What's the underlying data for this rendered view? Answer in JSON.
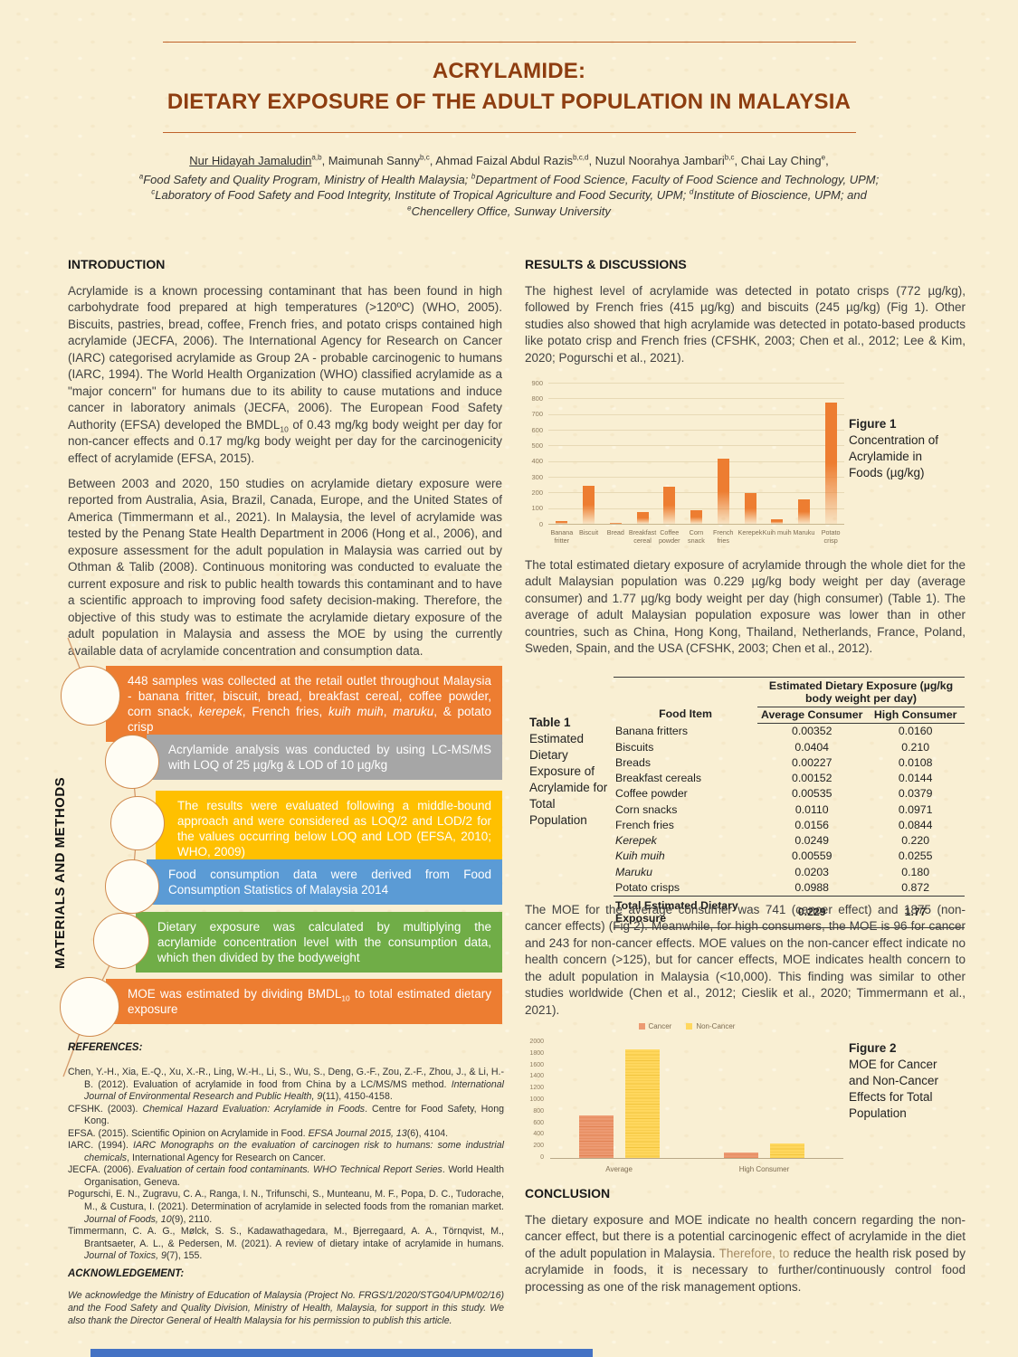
{
  "page": {
    "title_line1": "ACRYLAMIDE:",
    "title_line2": "DIETARY EXPOSURE OF THE ADULT POPULATION IN MALAYSIA"
  },
  "authors": {
    "segments": [
      {
        "t": "Nur Hidayah Jamaludin",
        "u": true
      },
      {
        "t": "a,b",
        "sup": true
      },
      {
        "t": ", Maimunah Sanny"
      },
      {
        "t": "b,c",
        "sup": true
      },
      {
        "t": ", Ahmad Faizal Abdul Razis"
      },
      {
        "t": "b,c,d",
        "sup": true
      },
      {
        "t": ", Nuzul Noorahya Jambari"
      },
      {
        "t": "b,c",
        "sup": true
      },
      {
        "t": ", Chai Lay Ching"
      },
      {
        "t": "e",
        "sup": true
      },
      {
        "t": ","
      }
    ]
  },
  "affiliations": {
    "segments": [
      {
        "t": "a",
        "sup": true
      },
      {
        "t": "Food Safety and Quality Program, Ministry of Health Malaysia; "
      },
      {
        "t": "b",
        "sup": true
      },
      {
        "t": "Department of Food Science, Faculty of Food Science and Technology, UPM; "
      },
      {
        "t": "c",
        "sup": true
      },
      {
        "t": "Laboratory of Food Safety and Food Integrity, Institute of Tropical Agriculture and Food Security, UPM; "
      },
      {
        "t": "d",
        "sup": true
      },
      {
        "t": "Institute of Bioscience, UPM; and "
      },
      {
        "t": "e",
        "sup": true
      },
      {
        "t": "Chencellery Office, Sunway University"
      }
    ]
  },
  "intro": {
    "heading": "INTRODUCTION",
    "p1_segments": [
      {
        "t": "Acrylamide is a known processing contaminant that has been found in high carbohydrate food prepared at high temperatures (>120ºC) (WHO, 2005). Biscuits, pastries, bread, coffee, French fries, and potato crisps contained high acrylamide (JECFA, 2006). The International Agency for Research on Cancer (IARC) categorised acrylamide as Group 2A - probable carcinogenic to humans (IARC, 1994). The World Health Organization (WHO) classified acrylamide as a \"major concern\" for humans due to its ability to cause mutations and induce cancer in laboratory animals (JECFA, 2006). The European Food Safety Authority (EFSA) developed the BMDL"
      },
      {
        "t": "10",
        "sub": true
      },
      {
        "t": " of 0.43 mg/kg body weight per day for non-cancer effects and 0.17 mg/kg body weight per day for the carcinogenicity effect of acrylamide (EFSA, 2015)."
      }
    ],
    "p2": "Between 2003 and 2020, 150 studies on acrylamide dietary exposure were reported from Australia, Asia, Brazil, Canada, Europe, and the United States of America (Timmermann et al., 2021). In Malaysia, the level of acrylamide was tested by the Penang State Health Department in 2006 (Hong et al., 2006), and exposure assessment for the adult population in Malaysia was carried out by Othman & Talib (2008). Continuous monitoring was conducted to evaluate the current exposure and risk to public health towards this contaminant and to have a scientific approach to improving food safety decision-making. Therefore, the objective of this study was to estimate the acrylamide dietary exposure of the adult population in Malaysia and assess the MOE by using the currently available data of acrylamide concentration and consumption data."
  },
  "methods": {
    "side_label": "MATERIALS AND METHODS",
    "boxes": [
      {
        "color": "#ED7D31",
        "segments": [
          {
            "t": "448 samples was collected at the retail outlet throughout Malaysia - banana fritter, biscuit, bread, breakfast cereal, coffee powder, corn snack, "
          },
          {
            "t": "kerepek",
            "i": true
          },
          {
            "t": ", French fries, "
          },
          {
            "t": "kuih muih",
            "i": true
          },
          {
            "t": ", "
          },
          {
            "t": "maruku",
            "i": true
          },
          {
            "t": ", & potato crisp"
          }
        ]
      },
      {
        "color": "#A6A6A6",
        "segments": [
          {
            "t": "Acrylamide analysis was conducted by using LC-MS/MS with LOQ of 25 µg/kg & LOD of 10 µg/kg"
          }
        ]
      },
      {
        "color": "#FFC000",
        "segments": [
          {
            "t": "The results were evaluated following a middle-bound approach and were considered as LOQ/2 and LOD/2 for the values occurring below LOQ and LOD (EFSA, 2010; WHO, 2009)"
          }
        ]
      },
      {
        "color": "#5B9BD5",
        "segments": [
          {
            "t": "Food consumption data were derived from Food Consumption Statistics of Malaysia 2014"
          }
        ]
      },
      {
        "color": "#70AD47",
        "segments": [
          {
            "t": "Dietary exposure was calculated by multiplying the acrylamide concentration level with the consumption data, which then divided by the bodyweight"
          }
        ]
      },
      {
        "color": "#ED7D31",
        "segments": [
          {
            "t": "MOE was estimated by dividing BMDL"
          },
          {
            "t": "10",
            "sub": true
          },
          {
            "t": " to total estimated dietary exposure"
          }
        ]
      }
    ]
  },
  "references": {
    "heading": "REFERENCES:",
    "items": [
      {
        "segments": [
          {
            "t": "Chen, Y.-H., Xia, E.-Q., Xu, X.-R., Ling, W.-H., Li, S., Wu, S., Deng, G.-F., Zou, Z.-F., Zhou, J., & Li, H.-B. (2012). Evaluation of acrylamide in food from China by a LC/MS/MS method. "
          },
          {
            "t": "International Journal of Environmental Research and Public Health, 9",
            "i": true
          },
          {
            "t": "(11), 4150-4158."
          }
        ]
      },
      {
        "segments": [
          {
            "t": "CFSHK. (2003). "
          },
          {
            "t": "Chemical Hazard Evaluation: Acrylamide in Foods",
            "i": true
          },
          {
            "t": ". Centre for Food Safety, Hong Kong."
          }
        ]
      },
      {
        "segments": [
          {
            "t": "EFSA. (2015). Scientific Opinion on Acrylamide in Food. "
          },
          {
            "t": "EFSA Journal 2015, 13",
            "i": true
          },
          {
            "t": "(6), 4104."
          }
        ]
      },
      {
        "segments": [
          {
            "t": "IARC. (1994). "
          },
          {
            "t": "IARC Monographs on the evaluation of carcinogen risk to humans: some industrial chemicals",
            "i": true
          },
          {
            "t": ", International Agency for Research on Cancer."
          }
        ]
      },
      {
        "segments": [
          {
            "t": "JECFA. (2006). "
          },
          {
            "t": "Evaluation of certain food contaminants. WHO Technical Report Series",
            "i": true
          },
          {
            "t": ". World Health Organisation, Geneva."
          }
        ]
      },
      {
        "segments": [
          {
            "t": "Pogurschi, E. N., Zugravu, C. A., Ranga, I. N., Trifunschi, S., Munteanu, M. F., Popa, D. C., Tudorache, M., & Custura, I. (2021). Determination of acrylamide in selected foods from the romanian market. "
          },
          {
            "t": "Journal of Foods, 10",
            "i": true
          },
          {
            "t": "(9), 2110."
          }
        ]
      },
      {
        "segments": [
          {
            "t": "Timmermann, C. A. G., Mølck, S. S., Kadawathagedara, M., Bjerregaard, A. A., Törnqvist, M., Brantsaeter, A. L., & Pedersen, M. (2021). A review of dietary intake of acrylamide in humans. "
          },
          {
            "t": "Journal of Toxics, 9",
            "i": true
          },
          {
            "t": "(7), 155."
          }
        ]
      }
    ]
  },
  "acknowledgement": {
    "heading": "ACKNOWLEDGEMENT:",
    "text": "We acknowledge the Ministry of Education of Malaysia (Project No. FRGS/1/2020/STG04/UPM/02/16) and the Food Safety and Quality Division, Ministry of Health, Malaysia, for support in this study. We also thank the Director General of Health Malaysia for his permission to publish this article."
  },
  "results": {
    "heading": "RESULTS & DISCUSSIONS",
    "p1": "The highest level of acrylamide was detected in potato crisps (772 µg/kg), followed by French fries (415 µg/kg) and biscuits (245 µg/kg) (Fig 1). Other studies also showed that high acrylamide was detected in potato-based products like potato crisp and French fries (CFSHK, 2003; Chen et al., 2012; Lee & Kim, 2020; Pogurschi et al., 2021).",
    "p2": "The total estimated dietary exposure of acrylamide through the whole diet for the adult Malaysian population was 0.229 µg/kg body weight per day (average consumer) and 1.77 µg/kg body weight per day (high consumer) (Table 1). The average of adult Malaysian population exposure was lower than in other countries, such as China, Hong Kong, Thailand, Netherlands, France, Poland, Sweden, Spain, and the USA (CFSHK, 2003; Chen et al., 2012).",
    "p3": "The MOE for the average consumer was 741 (cancer effect) and 1875 (non-cancer effects) (Fig 2). Meanwhile, for high consumers, the MOE is 96 for cancer and 243 for non-cancer effects. MOE values on the non-cancer effect indicate no health concern (>125), but for cancer effects, MOE indicates health concern to the adult population in Malaysia (<10,000). This finding was similar to other studies worldwide (Chen et al., 2012; Cieslik et al., 2020; Timmermann et al., 2021)."
  },
  "figure1": {
    "caption_title": "Figure 1",
    "caption_text": "Concentration of Acrylamide in Foods (µg/kg)"
  },
  "figure2": {
    "caption_title": "Figure 2",
    "caption_text": "MOE for Cancer and Non-Cancer Effects for Total Population"
  },
  "table1": {
    "caption_title": "Table 1",
    "caption_text": "Estimated Dietary Exposure of Acrylamide for Total Population",
    "col_food": "Food Item",
    "col_group": "Estimated Dietary Exposure (µg/kg body weight per day)",
    "col_avg": "Average Consumer",
    "col_high": "High Consumer",
    "rows": [
      {
        "food": "Banana fritters",
        "italic": false,
        "avg": "0.00352",
        "high": "0.0160"
      },
      {
        "food": "Biscuits",
        "italic": false,
        "avg": "0.0404",
        "high": "0.210"
      },
      {
        "food": "Breads",
        "italic": false,
        "avg": "0.00227",
        "high": "0.0108"
      },
      {
        "food": "Breakfast cereals",
        "italic": false,
        "avg": "0.00152",
        "high": "0.0144"
      },
      {
        "food": "Coffee powder",
        "italic": false,
        "avg": "0.00535",
        "high": "0.0379"
      },
      {
        "food": "Corn snacks",
        "italic": false,
        "avg": "0.0110",
        "high": "0.0971"
      },
      {
        "food": "French fries",
        "italic": false,
        "avg": "0.0156",
        "high": "0.0844"
      },
      {
        "food": "Kerepek",
        "italic": true,
        "avg": "0.0249",
        "high": "0.220"
      },
      {
        "food": "Kuih muih",
        "italic": true,
        "avg": "0.00559",
        "high": "0.0255"
      },
      {
        "food": "Maruku",
        "italic": true,
        "avg": "0.0203",
        "high": "0.180"
      },
      {
        "food": "Potato crisps",
        "italic": false,
        "avg": "0.0988",
        "high": "0.872"
      }
    ],
    "total_label": "Total Estimated Dietary Exposure",
    "total_avg": "0.229",
    "total_high": "1.77"
  },
  "conclusion": {
    "heading": "CONCLUSION",
    "segments": [
      {
        "t": "The dietary exposure and MOE indicate no health concern regarding the non-cancer effect, but there is a potential carcinogenic effect of acrylamide in the diet of the adult population in Malaysia. "
      },
      {
        "t": "Therefore, to",
        "c": "#a38a63"
      },
      {
        "t": " reduce the health risk posed by acrylamide in foods, it is necessary to further/continuously control food processing as one of the risk management options."
      }
    ]
  },
  "chart_data": [
    {
      "type": "bar",
      "title": "Figure 1 Concentration of Acrylamide in Foods (µg/kg)",
      "categories": [
        "Banana fritter",
        "Biscuit",
        "Bread",
        "Breakfast cereal",
        "Coffee powder",
        "Corn snack",
        "French fries",
        "Kerepek",
        "Kuih muih",
        "Maruku",
        "Potato crisp"
      ],
      "values": [
        20,
        245,
        5,
        75,
        235,
        85,
        415,
        195,
        30,
        155,
        772
      ],
      "xlabel": "",
      "ylabel": "",
      "ylim": [
        0,
        900
      ],
      "ytick_step": 100,
      "bar_color": "#ED7D31",
      "grid": true,
      "legend": false
    },
    {
      "type": "bar",
      "title": "Figure 2 MOE for Cancer and Non-Cancer Effects for Total Population",
      "categories": [
        "Average",
        "High Consumer"
      ],
      "series": [
        {
          "name": "Cancer",
          "color": "#EC9A72",
          "stripe": "#E28253",
          "values": [
            741,
            96
          ]
        },
        {
          "name": "Non-Cancer",
          "color": "#FFD75E",
          "stripe": "#F2C53D",
          "values": [
            1875,
            243
          ]
        }
      ],
      "xlabel": "",
      "ylabel": "",
      "ylim": [
        0,
        2000
      ],
      "ytick_step": 200,
      "grid": false,
      "legend_position": "top"
    }
  ]
}
